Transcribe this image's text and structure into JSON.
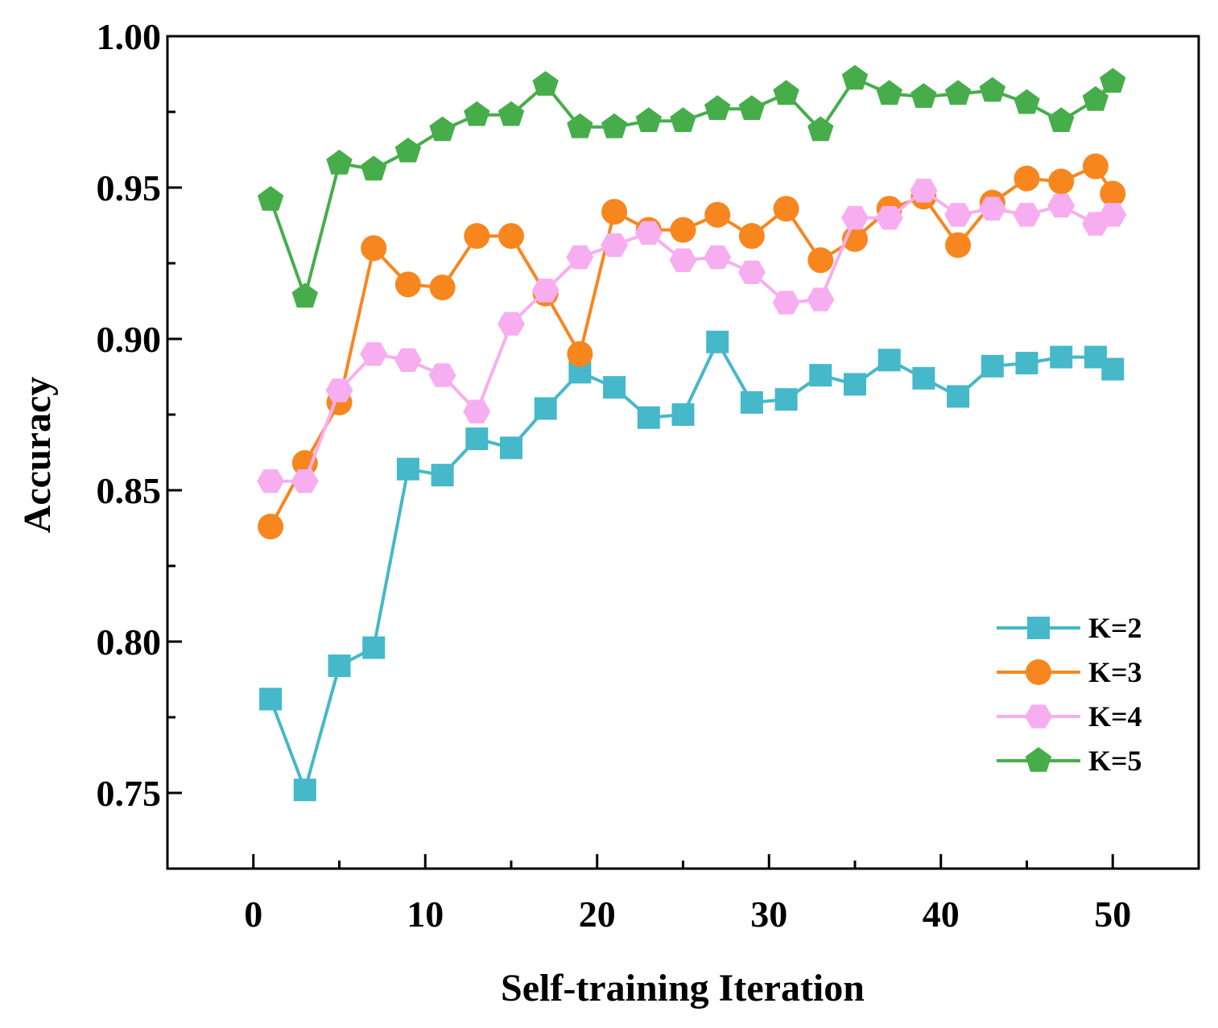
{
  "chart_data": {
    "type": "line",
    "title": "",
    "xlabel": "Self-training Iteration",
    "ylabel": "Accuracy",
    "xlim": [
      -5,
      55
    ],
    "ylim": [
      0.725,
      1.0
    ],
    "xticks": [
      0,
      10,
      20,
      30,
      40,
      50
    ],
    "xtick_labels": [
      "0",
      "10",
      "20",
      "30",
      "40",
      "50"
    ],
    "yticks": [
      0.75,
      0.8,
      0.85,
      0.9,
      0.95,
      1.0
    ],
    "ytick_labels": [
      "0.75",
      "0.80",
      "0.85",
      "0.90",
      "0.95",
      "1.00"
    ],
    "grid": false,
    "legend_position": "bottom-right",
    "x": [
      1,
      3,
      5,
      7,
      9,
      11,
      13,
      15,
      17,
      19,
      21,
      23,
      25,
      27,
      29,
      31,
      33,
      35,
      37,
      39,
      41,
      43,
      45,
      47,
      49,
      50
    ],
    "series": [
      {
        "name": "K=2",
        "color": "#45b8c9",
        "marker": "square",
        "values": [
          0.781,
          0.751,
          0.792,
          0.798,
          0.857,
          0.855,
          0.867,
          0.864,
          0.877,
          0.889,
          0.884,
          0.874,
          0.875,
          0.899,
          0.879,
          0.88,
          0.888,
          0.885,
          0.893,
          0.887,
          0.881,
          0.891,
          0.892,
          0.894,
          0.894,
          0.89
        ]
      },
      {
        "name": "K=3",
        "color": "#f7861f",
        "marker": "circle",
        "values": [
          0.838,
          0.859,
          0.879,
          0.93,
          0.918,
          0.917,
          0.934,
          0.934,
          0.915,
          0.895,
          0.942,
          0.936,
          0.936,
          0.941,
          0.934,
          0.943,
          0.926,
          0.933,
          0.943,
          0.947,
          0.931,
          0.945,
          0.953,
          0.952,
          0.957,
          0.948
        ]
      },
      {
        "name": "K=4",
        "color": "#f7aef0",
        "marker": "hexagon",
        "values": [
          0.853,
          0.853,
          0.883,
          0.895,
          0.893,
          0.888,
          0.876,
          0.905,
          0.916,
          0.927,
          0.931,
          0.935,
          0.926,
          0.927,
          0.922,
          0.912,
          0.913,
          0.94,
          0.94,
          0.949,
          0.941,
          0.943,
          0.941,
          0.944,
          0.938,
          0.941
        ]
      },
      {
        "name": "K=5",
        "color": "#47ad4b",
        "marker": "pentagon",
        "values": [
          0.946,
          0.914,
          0.958,
          0.956,
          0.962,
          0.969,
          0.974,
          0.974,
          0.984,
          0.97,
          0.97,
          0.972,
          0.972,
          0.976,
          0.976,
          0.981,
          0.969,
          0.986,
          0.981,
          0.98,
          0.981,
          0.982,
          0.978,
          0.972,
          0.979,
          0.985
        ]
      }
    ]
  }
}
